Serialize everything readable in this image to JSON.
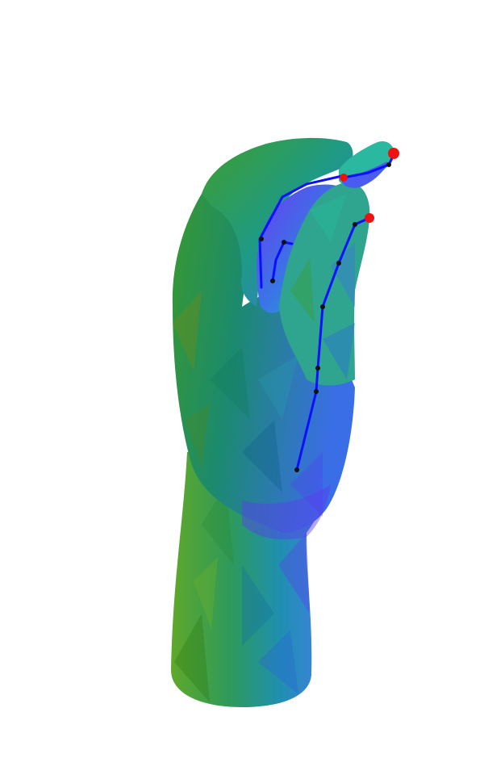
{
  "scene": {
    "subject": "hand-mesh",
    "background_color": "#ffffff",
    "palette": {
      "green": "#4aa020",
      "green_dark": "#3e8a18",
      "teal": "#1e9a86",
      "teal_dark": "#16766e",
      "cyan": "#24b8c8",
      "blue": "#3a74e6",
      "blue_light": "#4a8cf0",
      "violet": "#6a3cf0",
      "skeleton_line": "#0a10ff",
      "joint": "#111111",
      "fingertip_marker": "#ee1111"
    },
    "skeleton": {
      "joints_visible": 10,
      "fingertip_markers": 3
    }
  }
}
